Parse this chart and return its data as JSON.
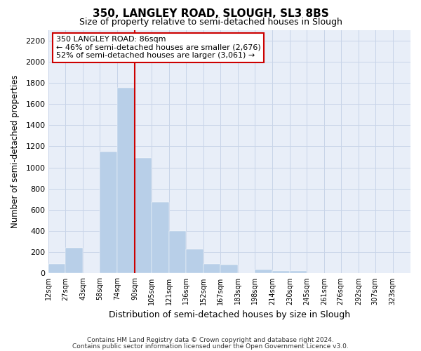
{
  "title": "350, LANGLEY ROAD, SLOUGH, SL3 8BS",
  "subtitle": "Size of property relative to semi-detached houses in Slough",
  "xlabel": "Distribution of semi-detached houses by size in Slough",
  "ylabel": "Number of semi-detached properties",
  "bar_labels": [
    "12sqm",
    "27sqm",
    "43sqm",
    "58sqm",
    "74sqm",
    "90sqm",
    "105sqm",
    "121sqm",
    "136sqm",
    "152sqm",
    "167sqm",
    "183sqm",
    "198sqm",
    "214sqm",
    "230sqm",
    "245sqm",
    "261sqm",
    "276sqm",
    "292sqm",
    "307sqm",
    "323sqm"
  ],
  "bar_values": [
    90,
    240,
    0,
    1150,
    1750,
    1090,
    670,
    400,
    230,
    90,
    80,
    0,
    35,
    25,
    20,
    0,
    0,
    0,
    0,
    0,
    0
  ],
  "bar_color": "#b8cfe8",
  "highlight_line_color": "#cc0000",
  "annotation_title": "350 LANGLEY ROAD: 86sqm",
  "annotation_line1": "← 46% of semi-detached houses are smaller (2,676)",
  "annotation_line2": "52% of semi-detached houses are larger (3,061) →",
  "ylim": [
    0,
    2300
  ],
  "yticks": [
    0,
    200,
    400,
    600,
    800,
    1000,
    1200,
    1400,
    1600,
    1800,
    2000,
    2200
  ],
  "grid_color": "#c8d4e8",
  "bg_color": "#e8eef8",
  "footer_line1": "Contains HM Land Registry data © Crown copyright and database right 2024.",
  "footer_line2": "Contains public sector information licensed under the Open Government Licence v3.0."
}
